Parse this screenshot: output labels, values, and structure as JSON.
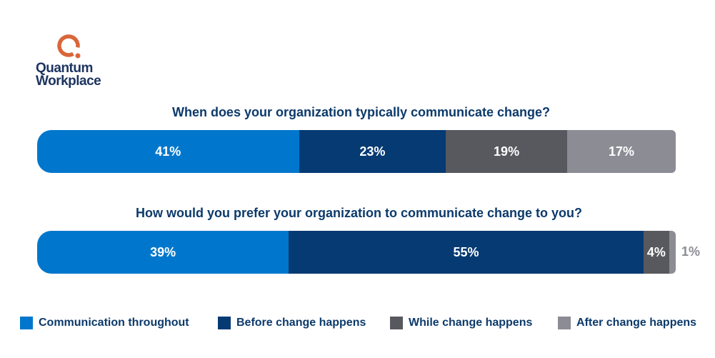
{
  "logo": {
    "line1": "Quantum",
    "line2": "Workplace",
    "accent": "#d9663a"
  },
  "colors": {
    "Communication throughout": "#0077cc",
    "Before change happens": "#053a73",
    "While change happens": "#58595f",
    "After change happens": "#8b8c94"
  },
  "chart_data": [
    {
      "type": "bar",
      "stacked": "horizontal-100",
      "title": "When does your organization typically communicate change?",
      "series": [
        {
          "name": "Communication throughout",
          "value": 41,
          "label": "41%"
        },
        {
          "name": "Before change happens",
          "value": 23,
          "label": "23%"
        },
        {
          "name": "While change happens",
          "value": 19,
          "label": "19%"
        },
        {
          "name": "After change happens",
          "value": 17,
          "label": "17%"
        }
      ]
    },
    {
      "type": "bar",
      "stacked": "horizontal-100",
      "title": "How would you prefer your organization to communicate change to you?",
      "series": [
        {
          "name": "Communication throughout",
          "value": 39,
          "label": "39%"
        },
        {
          "name": "Before change happens",
          "value": 55,
          "label": "55%"
        },
        {
          "name": "While change happens",
          "value": 4,
          "label": "4%"
        },
        {
          "name": "After change happens",
          "value": 1,
          "label": "1%"
        }
      ]
    }
  ],
  "legend": {
    "placement": "bottom",
    "items": [
      "Communication throughout",
      "Before change happens",
      "While change happens",
      "After change happens"
    ]
  }
}
